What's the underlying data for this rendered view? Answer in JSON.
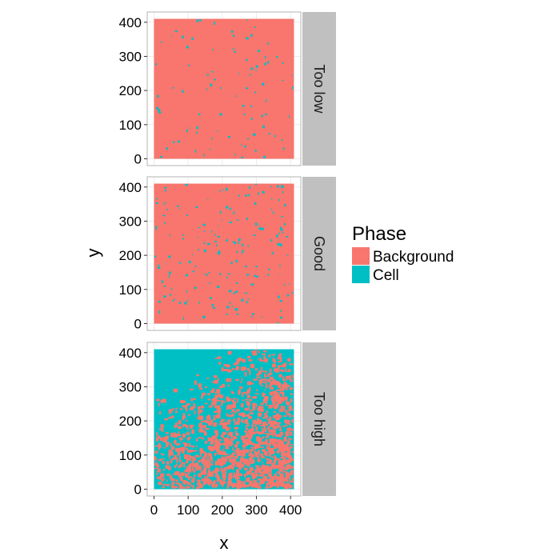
{
  "chart_data": {
    "type": "heatmap",
    "title": "",
    "xlabel": "x",
    "ylabel": "y",
    "xlim": [
      -20,
      430
    ],
    "ylim": [
      -20,
      430
    ],
    "x_ticks": [
      "0",
      "100",
      "200",
      "300",
      "400"
    ],
    "y_ticks": [
      "0",
      "100",
      "200",
      "300",
      "400"
    ],
    "x_tick_values": [
      0,
      100,
      200,
      300,
      400
    ],
    "y_tick_values": [
      0,
      100,
      200,
      300,
      400
    ],
    "image_extent": [
      0,
      410
    ],
    "grid": true,
    "legend": {
      "title": "Phase",
      "placement": "right",
      "entries": [
        {
          "label": "Background",
          "color": "#F8766D"
        },
        {
          "label": "Cell",
          "color": "#00BFC4"
        }
      ]
    },
    "facets": [
      {
        "label": "Too low",
        "cell_fraction": 0.05,
        "pattern": "sparse-speckle"
      },
      {
        "label": "Good",
        "cell_fraction": 0.1,
        "pattern": "speckle"
      },
      {
        "label": "Too high",
        "cell_fraction": 0.55,
        "pattern": "cell-dominant, background concentrated in lower-left"
      }
    ]
  },
  "colors": {
    "panel_background": "#ffffff",
    "panel_border": "#b3b3b3",
    "grid": "#ebebeb",
    "strip_background": "#c0c0c0",
    "background_phase": "#F8766D",
    "cell_phase": "#00BFC4"
  }
}
